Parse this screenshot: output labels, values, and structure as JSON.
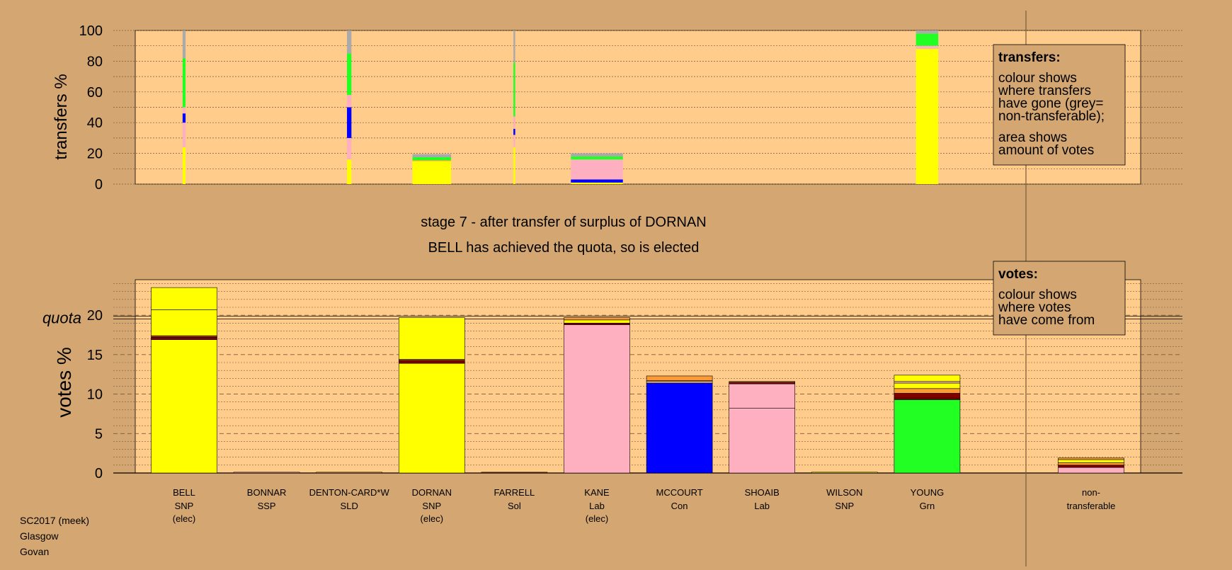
{
  "colors": {
    "background": "#d4a772",
    "plot_bg": "#ffcc8c",
    "SNP": "#ffff00",
    "SSP": "#ff9999",
    "SLD": "#ff9933",
    "Sol": "#993300",
    "Lab": "#ffb0c0",
    "Con": "#0000ff",
    "Grn": "#22ff22",
    "Other": "#800000",
    "non_transferable": "#aaaaaa"
  },
  "stage_title": "stage 7 - after transfer of surplus of DORNAN",
  "stage_subtitle": "BELL has achieved the quota, so is elected",
  "footer": {
    "line1": "SC2017 (meek)",
    "line2": "Glasgow",
    "line3": "Govan"
  },
  "legend_transfers": {
    "title": "transfers:",
    "para1": [
      "colour shows",
      "where transfers",
      "have gone (grey=",
      "non-transferable);"
    ],
    "para2": [
      "area shows",
      "amount of votes"
    ]
  },
  "legend_votes": {
    "title": "votes:",
    "para1": [
      "colour shows",
      "where votes",
      "have come from"
    ]
  },
  "chart_data": [
    {
      "type": "bar",
      "ylabel": "transfers %",
      "ylim": [
        0,
        100
      ],
      "yticks": [
        0,
        20,
        40,
        60,
        80,
        100
      ],
      "columns": [
        {
          "candidate": "BELL",
          "width": 1.0,
          "segments": [
            {
              "color": "SNP",
              "value": 24
            },
            {
              "color": "Lab",
              "value": 16
            },
            {
              "color": "Con",
              "value": 6
            },
            {
              "color": "Lab",
              "value": 4
            },
            {
              "color": "Grn",
              "value": 32
            },
            {
              "color": "non_transferable",
              "value": 18
            }
          ]
        },
        {
          "candidate": "DENTON-CARD*W",
          "width": 1.5,
          "segments": [
            {
              "color": "SNP",
              "value": 16
            },
            {
              "color": "Lab",
              "value": 14
            },
            {
              "color": "Con",
              "value": 20
            },
            {
              "color": "Lab",
              "value": 8
            },
            {
              "color": "Grn",
              "value": 27
            },
            {
              "color": "non_transferable",
              "value": 15
            }
          ]
        },
        {
          "candidate": "DORNAN",
          "width": 13,
          "segments": [
            {
              "color": "SNP",
              "value": 15
            },
            {
              "color": "SLD",
              "value": 0.5
            },
            {
              "color": "Grn",
              "value": 2
            },
            {
              "color": "non_transferable",
              "value": 2
            }
          ]
        },
        {
          "candidate": "FARRELL",
          "width": 0.6,
          "segments": [
            {
              "color": "SNP",
              "value": 24
            },
            {
              "color": "Lab",
              "value": 8
            },
            {
              "color": "Con",
              "value": 4
            },
            {
              "color": "Lab",
              "value": 8
            },
            {
              "color": "Grn",
              "value": 35
            },
            {
              "color": "non_transferable",
              "value": 21
            }
          ]
        },
        {
          "candidate": "KANE",
          "width": 17.5,
          "segments": [
            {
              "color": "SNP",
              "value": 1
            },
            {
              "color": "Con",
              "value": 2
            },
            {
              "color": "Lab",
              "value": 13
            },
            {
              "color": "Grn",
              "value": 2
            },
            {
              "color": "non_transferable",
              "value": 2
            }
          ]
        },
        {
          "candidate": "YOUNG",
          "width": 7.5,
          "segments": [
            {
              "color": "SNP",
              "value": 88
            },
            {
              "color": "Lab",
              "value": 2
            },
            {
              "color": "Grn",
              "value": 8
            },
            {
              "color": "non_transferable",
              "value": 2
            }
          ]
        }
      ]
    },
    {
      "type": "bar",
      "ylabel": "votes %",
      "ylim": [
        0,
        20
      ],
      "yticks": [
        0,
        5,
        10,
        15,
        20
      ],
      "quota": 19.7,
      "quota_label": "quota",
      "categories": [
        "BELL",
        "BONNAR",
        "DENTON-CARD*W",
        "DORNAN",
        "FARRELL",
        "KANE",
        "MCCOURT",
        "SHOAIB",
        "WILSON",
        "YOUNG"
      ],
      "parties": [
        "SNP",
        "SSP",
        "SLD",
        "SNP",
        "Sol",
        "Lab",
        "Con",
        "Lab",
        "SNP",
        "Grn"
      ],
      "status": [
        "(elec)",
        "",
        "",
        "(elec)",
        "",
        "(elec)",
        "",
        "",
        "",
        ""
      ],
      "candidates": [
        {
          "segments": [
            {
              "color": "SNP",
              "value": 16.9
            },
            {
              "color": "Other",
              "value": 0.3
            },
            {
              "color": "Sol",
              "value": 0.2
            },
            {
              "color": "SNP",
              "value": 3.3
            },
            {
              "color": "SNP",
              "value": 2.8
            }
          ]
        },
        {
          "segments": [
            {
              "color": "SSP",
              "value": 0.1
            }
          ]
        },
        {
          "segments": [
            {
              "color": "SLD",
              "value": 0.1
            }
          ]
        },
        {
          "segments": [
            {
              "color": "SNP",
              "value": 13.9
            },
            {
              "color": "Other",
              "value": 0.3
            },
            {
              "color": "Sol",
              "value": 0.2
            },
            {
              "color": "SNP",
              "value": 5.3
            }
          ]
        },
        {
          "segments": [
            {
              "color": "Sol",
              "value": 0.1
            }
          ]
        },
        {
          "segments": [
            {
              "color": "Lab",
              "value": 18.8
            },
            {
              "color": "Other",
              "value": 0.2
            },
            {
              "color": "SNP",
              "value": 0.4
            },
            {
              "color": "SLD",
              "value": 0.3
            }
          ]
        },
        {
          "segments": [
            {
              "color": "Con",
              "value": 11.4
            },
            {
              "color": "Lab",
              "value": 0.2
            },
            {
              "color": "SNP",
              "value": 0.1
            },
            {
              "color": "SLD",
              "value": 0.6
            }
          ]
        },
        {
          "segments": [
            {
              "color": "Lab",
              "value": 8.2
            },
            {
              "color": "Lab",
              "value": 3.1
            },
            {
              "color": "Other",
              "value": 0.2
            },
            {
              "color": "SLD",
              "value": 0.1
            }
          ]
        },
        {
          "segments": [
            {
              "color": "SNP",
              "value": 0.1
            }
          ]
        },
        {
          "segments": [
            {
              "color": "Grn",
              "value": 9.3
            },
            {
              "color": "Other",
              "value": 0.2
            },
            {
              "color": "Other",
              "value": 0.6
            },
            {
              "color": "SLD",
              "value": 0.6
            },
            {
              "color": "SNP",
              "value": 0.7
            },
            {
              "color": "Lab",
              "value": 0.2
            },
            {
              "color": "SNP",
              "value": 0.8
            }
          ]
        }
      ],
      "non_transferable": {
        "label_line1": "non-",
        "label_line2": "transferable",
        "segments": [
          {
            "color": "Lab",
            "value": 0.7
          },
          {
            "color": "Other",
            "value": 0.3
          },
          {
            "color": "SLD",
            "value": 0.3
          },
          {
            "color": "SNP",
            "value": 0.4
          },
          {
            "color": "SLD",
            "value": 0.2
          }
        ]
      }
    }
  ]
}
